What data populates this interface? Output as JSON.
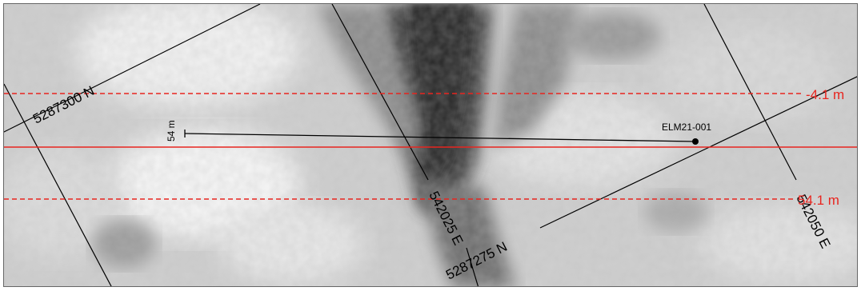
{
  "map": {
    "colors": {
      "section_line": "#e8251f",
      "grid_line": "#000000",
      "drill_trace": "#000000",
      "collar": "#000000",
      "label_red": "#e8251f",
      "label_black": "#000000"
    },
    "grid_labels": {
      "northing_upper": "5287300 N",
      "northing_lower": "5287275 N",
      "easting_left": "542025 E",
      "easting_right": "542050 E"
    },
    "section_labels": {
      "upper": "-4.1 m",
      "lower": "54.1 m"
    },
    "drillhole": {
      "collar_id": "ELM21-001",
      "trace_end_label": "54 m"
    }
  }
}
